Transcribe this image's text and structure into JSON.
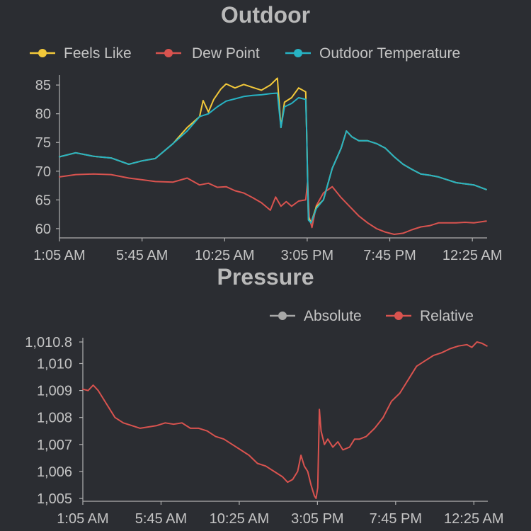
{
  "colors": {
    "background": "#2b2d32",
    "feels_like": "#f2c83a",
    "dew_point": "#d9534f",
    "outdoor_temperature": "#27b3c4",
    "absolute": "#a8a8a8",
    "relative": "#d9534f"
  },
  "chart_data": [
    {
      "type": "line",
      "title": "Outdoor",
      "legend_position": "top",
      "grid": false,
      "x_ticks": [
        "1:05 AM",
        "5:45 AM",
        "10:25 AM",
        "3:05 PM",
        "7:45 PM",
        "12:25 AM"
      ],
      "x_tick_hours": [
        1.083,
        5.75,
        10.417,
        15.083,
        19.75,
        24.417
      ],
      "xlim": [
        1.083,
        25.25
      ],
      "ylim": [
        59,
        86
      ],
      "y_ticks": [
        "85",
        "80",
        "75",
        "70",
        "65",
        "60"
      ],
      "y_tick_values": [
        85,
        80,
        75,
        70,
        65,
        60
      ],
      "series": [
        {
          "name": "Feels Like",
          "color": "#f2c83a",
          "x": [
            1.08,
            2.0,
            3.0,
            4.0,
            5.0,
            5.75,
            6.5,
            7.5,
            8.3,
            9.0,
            9.2,
            9.5,
            9.8,
            10.2,
            10.5,
            11.0,
            11.5,
            12.0,
            12.5,
            13.0,
            13.4,
            13.6,
            13.8,
            14.2,
            14.6,
            15.0,
            15.05,
            15.15,
            15.3,
            15.6,
            16.0,
            16.5,
            17.0,
            17.3,
            17.6,
            18.0,
            18.5,
            19.0,
            19.5,
            20.0,
            20.5,
            21.0,
            21.5,
            22.0,
            22.5,
            23.0,
            23.5,
            24.0,
            24.5,
            25.2
          ],
          "y": [
            72.5,
            73.2,
            72.6,
            72.3,
            71.2,
            71.8,
            72.2,
            74.8,
            77.6,
            79.5,
            82.3,
            80.3,
            82.5,
            84.3,
            85.2,
            84.5,
            85.1,
            84.6,
            84.1,
            85.0,
            86.2,
            77.6,
            82.0,
            82.8,
            84.5,
            83.8,
            77.0,
            62.0,
            61.0,
            63.8,
            65.0,
            70.5,
            74.0,
            77.0,
            76.0,
            75.3,
            75.3,
            74.8,
            74.0,
            72.5,
            71.2,
            70.3,
            69.5,
            69.3,
            69.0,
            68.5,
            68.0,
            67.8,
            67.6,
            66.8
          ]
        },
        {
          "name": "Dew Point",
          "color": "#d9534f",
          "x": [
            1.08,
            2.0,
            3.0,
            4.0,
            5.0,
            5.75,
            6.5,
            7.5,
            8.3,
            9.0,
            9.5,
            10.0,
            10.5,
            11.0,
            11.5,
            12.0,
            12.5,
            13.0,
            13.3,
            13.6,
            13.9,
            14.2,
            14.6,
            15.0,
            15.1,
            15.2,
            15.35,
            15.6,
            16.0,
            16.5,
            17.0,
            17.5,
            18.0,
            18.5,
            19.0,
            19.5,
            20.0,
            20.5,
            21.0,
            21.5,
            22.0,
            22.5,
            23.0,
            23.5,
            24.0,
            24.5,
            25.2
          ],
          "y": [
            69.0,
            69.4,
            69.5,
            69.4,
            68.8,
            68.5,
            68.2,
            68.1,
            68.8,
            67.6,
            67.9,
            67.2,
            67.3,
            66.6,
            66.2,
            65.4,
            64.5,
            63.2,
            65.5,
            63.9,
            64.7,
            63.9,
            64.8,
            65.0,
            68.0,
            62.0,
            60.2,
            64.0,
            66.2,
            67.3,
            65.4,
            63.8,
            62.2,
            61.0,
            60.0,
            59.4,
            59.0,
            59.2,
            59.8,
            60.3,
            60.5,
            61.0,
            61.0,
            61.0,
            61.1,
            61.0,
            61.3
          ]
        },
        {
          "name": "Outdoor Temperature",
          "color": "#27b3c4",
          "x": [
            1.08,
            2.0,
            3.0,
            4.0,
            5.0,
            5.75,
            6.5,
            7.5,
            8.3,
            9.0,
            9.5,
            10.0,
            10.5,
            11.0,
            11.5,
            12.0,
            12.5,
            13.0,
            13.4,
            13.6,
            13.8,
            14.2,
            14.6,
            15.0,
            15.05,
            15.15,
            15.3,
            15.6,
            16.0,
            16.5,
            17.0,
            17.3,
            17.6,
            18.0,
            18.5,
            19.0,
            19.5,
            20.0,
            20.5,
            21.0,
            21.5,
            22.0,
            22.5,
            23.0,
            23.5,
            24.0,
            24.5,
            25.2
          ],
          "y": [
            72.5,
            73.2,
            72.6,
            72.3,
            71.2,
            71.8,
            72.2,
            74.8,
            77.0,
            79.5,
            80.0,
            81.2,
            82.2,
            82.6,
            83.0,
            83.2,
            83.3,
            83.5,
            83.6,
            77.6,
            81.2,
            81.8,
            82.8,
            82.5,
            77.0,
            61.5,
            61.0,
            63.5,
            65.0,
            70.5,
            74.0,
            77.0,
            76.0,
            75.3,
            75.3,
            74.8,
            74.0,
            72.5,
            71.2,
            70.3,
            69.5,
            69.3,
            69.0,
            68.5,
            68.0,
            67.8,
            67.6,
            66.8
          ]
        }
      ]
    },
    {
      "type": "line",
      "title": "Pressure",
      "legend_position": "top-right",
      "grid": false,
      "x_ticks": [
        "1:05 AM",
        "5:45 AM",
        "10:25 AM",
        "3:05 PM",
        "7:45 PM",
        "12:25 AM"
      ],
      "x_tick_hours": [
        1.083,
        5.75,
        10.417,
        15.083,
        19.75,
        24.417
      ],
      "xlim": [
        1.083,
        25.25
      ],
      "ylim": [
        1005,
        1010.8
      ],
      "y_ticks": [
        "1,010.8",
        "1,010",
        "1,009",
        "1,008",
        "1,007",
        "1,006",
        "1,005"
      ],
      "y_tick_values": [
        1010.8,
        1010,
        1009,
        1008,
        1007,
        1006,
        1005
      ],
      "series": [
        {
          "name": "Absolute",
          "color": "#a8a8a8",
          "x": [],
          "y": []
        },
        {
          "name": "Relative",
          "color": "#d9534f",
          "x": [
            1.08,
            1.4,
            1.7,
            2.0,
            2.5,
            3.0,
            3.5,
            4.0,
            4.5,
            5.0,
            5.5,
            6.0,
            6.5,
            7.0,
            7.5,
            8.0,
            8.5,
            9.0,
            9.5,
            10.0,
            10.5,
            11.0,
            11.5,
            12.0,
            12.5,
            13.0,
            13.3,
            13.6,
            13.9,
            14.1,
            14.3,
            14.5,
            14.7,
            14.9,
            15.0,
            15.1,
            15.2,
            15.3,
            15.5,
            15.7,
            16.0,
            16.3,
            16.6,
            17.0,
            17.3,
            17.6,
            18.0,
            18.5,
            19.0,
            19.5,
            20.0,
            20.5,
            21.0,
            21.5,
            22.0,
            22.5,
            23.0,
            23.5,
            24.0,
            24.3,
            24.6,
            24.9,
            25.2
          ],
          "y": [
            1009.05,
            1009.0,
            1009.2,
            1009.0,
            1008.5,
            1008.0,
            1007.8,
            1007.7,
            1007.6,
            1007.65,
            1007.7,
            1007.8,
            1007.75,
            1007.8,
            1007.6,
            1007.6,
            1007.5,
            1007.3,
            1007.2,
            1007.0,
            1006.8,
            1006.6,
            1006.3,
            1006.2,
            1006.0,
            1005.8,
            1005.6,
            1005.7,
            1006.0,
            1006.6,
            1006.2,
            1006.0,
            1005.5,
            1005.1,
            1005.0,
            1005.4,
            1008.3,
            1007.5,
            1007.0,
            1007.2,
            1006.9,
            1007.1,
            1006.8,
            1006.9,
            1007.2,
            1007.2,
            1007.3,
            1007.6,
            1008.0,
            1008.6,
            1008.9,
            1009.4,
            1009.9,
            1010.1,
            1010.3,
            1010.4,
            1010.55,
            1010.65,
            1010.7,
            1010.6,
            1010.8,
            1010.75,
            1010.65
          ]
        }
      ]
    }
  ]
}
